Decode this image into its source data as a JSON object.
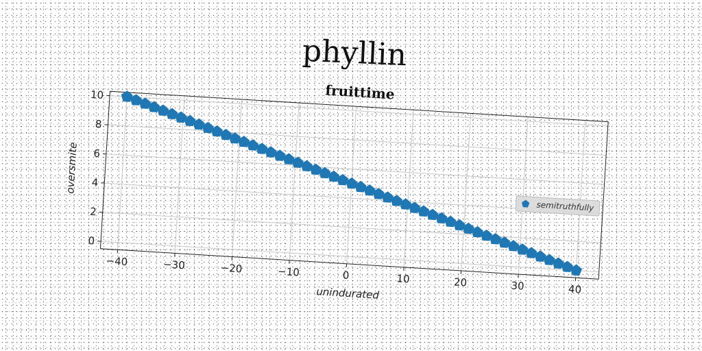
{
  "figure": {
    "suptitle": "phyllin"
  },
  "chart_data": {
    "type": "scatter",
    "title": "fruittime",
    "xlabel": "unindurated",
    "ylabel": "oversmite",
    "xlim": [
      -43,
      44
    ],
    "ylim": [
      -0.5,
      10.3
    ],
    "xticks": [
      -40,
      -30,
      -20,
      -10,
      0,
      10,
      20,
      30,
      40
    ],
    "xtick_labels": [
      "−40",
      "−30",
      "−20",
      "−10",
      "0",
      "10",
      "20",
      "30",
      "40"
    ],
    "yticks": [
      0,
      2,
      4,
      6,
      8,
      10
    ],
    "ytick_labels": [
      "0",
      "2",
      "4",
      "6",
      "8",
      "10"
    ],
    "grid": true,
    "legend_position": "center-right",
    "marker": "pentagon",
    "series": [
      {
        "name": "semitruthfully",
        "color": "#1f77b4",
        "x": [
          -40.0,
          -38.4,
          -36.8,
          -35.2,
          -33.6,
          -32.0,
          -30.4,
          -28.8,
          -27.2,
          -25.6,
          -24.0,
          -22.4,
          -20.8,
          -19.2,
          -17.6,
          -16.0,
          -14.4,
          -12.8,
          -11.2,
          -9.6,
          -8.0,
          -6.4,
          -4.8,
          -3.2,
          -1.6,
          0.0,
          1.6,
          3.2,
          4.8,
          6.4,
          8.0,
          9.6,
          11.2,
          12.8,
          14.4,
          16.0,
          17.6,
          19.2,
          20.8,
          22.4,
          24.0,
          25.6,
          27.2,
          28.8,
          30.4,
          32.0,
          33.6,
          35.2,
          36.8,
          38.4,
          40.0
        ],
        "y": [
          10.0,
          9.8,
          9.6,
          9.4,
          9.2,
          9.0,
          8.8,
          8.6,
          8.4,
          8.2,
          8.0,
          7.8,
          7.6,
          7.4,
          7.2,
          7.0,
          6.8,
          6.6,
          6.4,
          6.2,
          6.0,
          5.8,
          5.6,
          5.4,
          5.2,
          5.0,
          4.8,
          4.6,
          4.4,
          4.2,
          4.0,
          3.8,
          3.6,
          3.4,
          3.2,
          3.0,
          2.8,
          2.6,
          2.4,
          2.2,
          2.0,
          1.8,
          1.6,
          1.4,
          1.2,
          1.0,
          0.8,
          0.6,
          0.4,
          0.2,
          0.0
        ]
      }
    ]
  }
}
